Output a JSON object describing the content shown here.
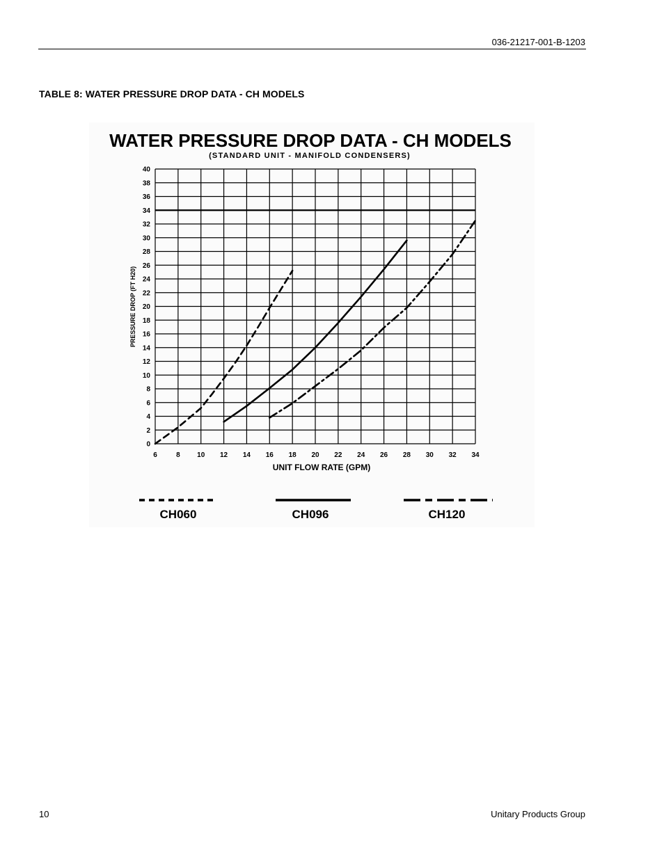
{
  "header": {
    "doc_number": "036-21217-001-B-1203"
  },
  "caption": "TABLE 8: WATER PRESSURE DROP DATA - CH MODELS",
  "footer": {
    "page_number": "10",
    "company": "Unitary Products Group"
  },
  "chart_data": {
    "type": "line",
    "title": "WATER PRESSURE DROP DATA - CH MODELS",
    "subtitle": "(STANDARD UNIT - MANIFOLD CONDENSERS)",
    "xlabel": "UNIT FLOW RATE (GPM)",
    "ylabel": "PRESSURE DROP (FT H20)",
    "xlim": [
      6,
      34
    ],
    "ylim": [
      0,
      40
    ],
    "x_ticks": [
      6,
      8,
      10,
      12,
      14,
      16,
      18,
      20,
      22,
      24,
      26,
      28,
      30,
      32,
      34
    ],
    "y_ticks": [
      0,
      2,
      4,
      6,
      8,
      10,
      12,
      14,
      16,
      18,
      20,
      22,
      24,
      26,
      28,
      30,
      32,
      34,
      36,
      38,
      40
    ],
    "grid": true,
    "legend_position": "bottom",
    "reference_line": {
      "y": 34
    },
    "series": [
      {
        "name": "CH060",
        "style": "dashed",
        "color": "#000000",
        "x": [
          6,
          7,
          8,
          9,
          10,
          11,
          12,
          13,
          14,
          15,
          16,
          17,
          18
        ],
        "y": [
          0,
          1.2,
          2.4,
          3.8,
          5.2,
          7.3,
          9.5,
          11.8,
          14.3,
          17.0,
          19.8,
          22.5,
          25.2
        ]
      },
      {
        "name": "CH096",
        "style": "solid",
        "color": "#000000",
        "x": [
          12,
          14,
          16,
          18,
          20,
          22,
          24,
          26,
          28
        ],
        "y": [
          3.2,
          5.5,
          8.1,
          10.8,
          14.0,
          17.6,
          21.4,
          25.4,
          29.6
        ]
      },
      {
        "name": "CH120",
        "style": "dash-dot",
        "color": "#000000",
        "x": [
          16,
          18,
          20,
          22,
          24,
          26,
          28,
          30,
          32,
          34
        ],
        "y": [
          3.8,
          5.9,
          8.4,
          10.9,
          13.6,
          16.9,
          19.8,
          23.6,
          27.6,
          32.5
        ]
      }
    ]
  }
}
